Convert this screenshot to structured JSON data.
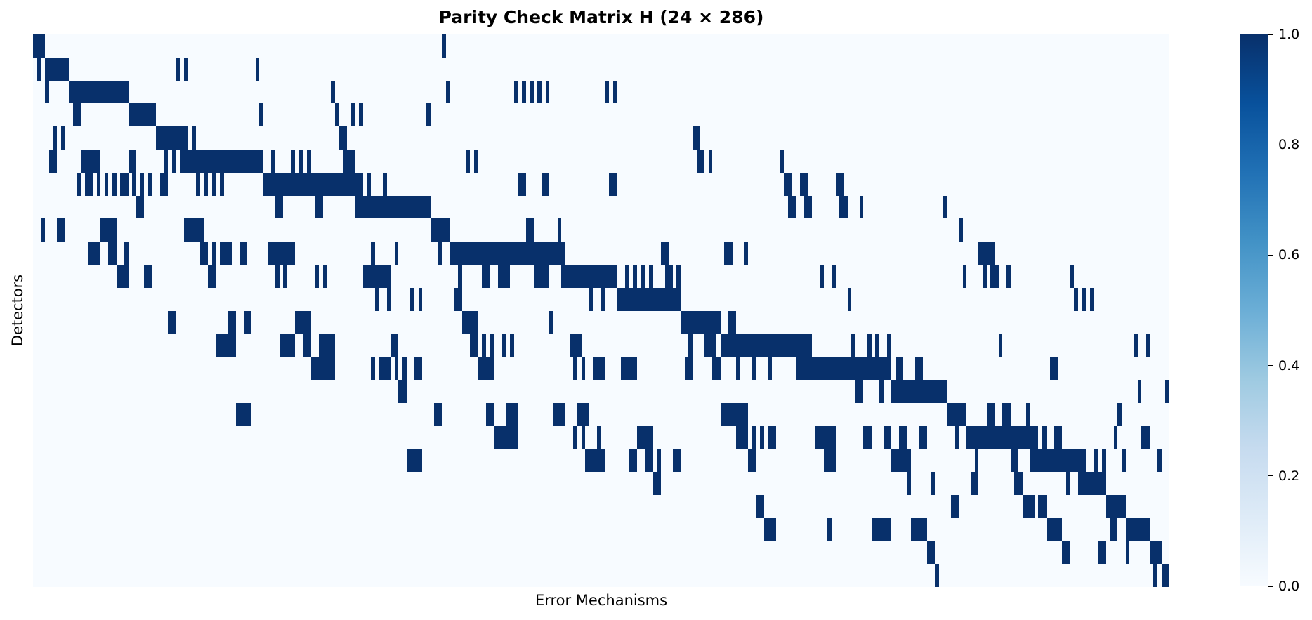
{
  "chart_data": {
    "type": "heatmap",
    "title": "Parity Check Matrix H (24 × 286)",
    "xlabel": "Error Mechanisms",
    "ylabel": "Detectors",
    "n_rows": 24,
    "n_cols": 286,
    "colormap": "Blues",
    "color_low": "#f7fbff",
    "color_high": "#08306b",
    "colorbar": {
      "range": [
        0.0,
        1.0
      ],
      "ticks": [
        "0.0",
        "0.2",
        "0.4",
        "0.6",
        "0.8",
        "1.0"
      ],
      "gradient": [
        "#f7fbff",
        "#deebf7",
        "#c6dbef",
        "#9ecae1",
        "#6baed6",
        "#4292c6",
        "#2171b5",
        "#08519c",
        "#08306b"
      ]
    },
    "grid": false,
    "tick_labels_shown": false,
    "value_encoding": "Each row lists inclusive [start_col, end_col] ranges where H = 1; all other cells are 0.",
    "rows": [
      [
        [
          0,
          2
        ],
        [
          103,
          103
        ]
      ],
      [
        [
          1,
          1
        ],
        [
          3,
          8
        ],
        [
          36,
          36
        ],
        [
          38,
          38
        ],
        [
          56,
          56
        ]
      ],
      [
        [
          3,
          3
        ],
        [
          9,
          23
        ],
        [
          75,
          75
        ],
        [
          104,
          104
        ],
        [
          121,
          121
        ],
        [
          123,
          123
        ],
        [
          125,
          125
        ],
        [
          127,
          127
        ],
        [
          129,
          129
        ],
        [
          144,
          144
        ],
        [
          146,
          146
        ]
      ],
      [
        [
          10,
          11
        ],
        [
          24,
          30
        ],
        [
          57,
          57
        ],
        [
          76,
          76
        ],
        [
          80,
          80
        ],
        [
          82,
          82
        ],
        [
          99,
          99
        ]
      ],
      [
        [
          5,
          5
        ],
        [
          7,
          7
        ],
        [
          31,
          38
        ],
        [
          40,
          40
        ],
        [
          77,
          78
        ],
        [
          166,
          167
        ]
      ],
      [
        [
          4,
          5
        ],
        [
          12,
          16
        ],
        [
          24,
          25
        ],
        [
          33,
          33
        ],
        [
          35,
          35
        ],
        [
          37,
          57
        ],
        [
          60,
          60
        ],
        [
          65,
          65
        ],
        [
          67,
          67
        ],
        [
          69,
          69
        ],
        [
          78,
          80
        ],
        [
          109,
          109
        ],
        [
          111,
          111
        ],
        [
          167,
          168
        ],
        [
          170,
          170
        ],
        [
          188,
          188
        ]
      ],
      [
        [
          11,
          11
        ],
        [
          13,
          14
        ],
        [
          16,
          16
        ],
        [
          18,
          18
        ],
        [
          20,
          20
        ],
        [
          22,
          23
        ],
        [
          25,
          25
        ],
        [
          27,
          27
        ],
        [
          29,
          29
        ],
        [
          32,
          33
        ],
        [
          41,
          41
        ],
        [
          43,
          43
        ],
        [
          45,
          45
        ],
        [
          47,
          47
        ],
        [
          58,
          82
        ],
        [
          84,
          84
        ],
        [
          88,
          88
        ],
        [
          122,
          123
        ],
        [
          128,
          129
        ],
        [
          145,
          146
        ],
        [
          189,
          190
        ],
        [
          193,
          194
        ],
        [
          202,
          203
        ]
      ],
      [
        [
          26,
          27
        ],
        [
          61,
          62
        ],
        [
          71,
          72
        ],
        [
          81,
          99
        ],
        [
          190,
          191
        ],
        [
          194,
          195
        ],
        [
          203,
          204
        ],
        [
          208,
          208
        ],
        [
          229,
          229
        ]
      ],
      [
        [
          2,
          2
        ],
        [
          6,
          7
        ],
        [
          17,
          20
        ],
        [
          38,
          42
        ],
        [
          100,
          104
        ],
        [
          124,
          125
        ],
        [
          132,
          132
        ],
        [
          233,
          233
        ]
      ],
      [
        [
          14,
          16
        ],
        [
          19,
          20
        ],
        [
          23,
          23
        ],
        [
          42,
          43
        ],
        [
          45,
          45
        ],
        [
          47,
          49
        ],
        [
          52,
          53
        ],
        [
          59,
          65
        ],
        [
          85,
          85
        ],
        [
          91,
          91
        ],
        [
          102,
          102
        ],
        [
          105,
          133
        ],
        [
          158,
          159
        ],
        [
          174,
          175
        ],
        [
          179,
          179
        ],
        [
          238,
          241
        ]
      ],
      [
        [
          21,
          23
        ],
        [
          28,
          29
        ],
        [
          44,
          45
        ],
        [
          61,
          61
        ],
        [
          63,
          63
        ],
        [
          71,
          71
        ],
        [
          73,
          73
        ],
        [
          83,
          89
        ],
        [
          107,
          107
        ],
        [
          113,
          114
        ],
        [
          117,
          119
        ],
        [
          126,
          129
        ],
        [
          133,
          146
        ],
        [
          149,
          149
        ],
        [
          151,
          151
        ],
        [
          153,
          153
        ],
        [
          155,
          155
        ],
        [
          159,
          160
        ],
        [
          162,
          162
        ],
        [
          198,
          198
        ],
        [
          201,
          201
        ],
        [
          234,
          234
        ],
        [
          239,
          239
        ],
        [
          241,
          242
        ],
        [
          245,
          245
        ],
        [
          261,
          261
        ]
      ],
      [
        [
          86,
          86
        ],
        [
          89,
          89
        ],
        [
          95,
          95
        ],
        [
          97,
          97
        ],
        [
          106,
          107
        ],
        [
          140,
          140
        ],
        [
          143,
          143
        ],
        [
          147,
          162
        ],
        [
          205,
          205
        ],
        [
          262,
          262
        ],
        [
          264,
          264
        ],
        [
          266,
          266
        ]
      ],
      [
        [
          34,
          35
        ],
        [
          49,
          50
        ],
        [
          53,
          54
        ],
        [
          66,
          69
        ],
        [
          108,
          111
        ],
        [
          130,
          130
        ],
        [
          163,
          172
        ],
        [
          175,
          176
        ]
      ],
      [
        [
          46,
          50
        ],
        [
          62,
          65
        ],
        [
          68,
          69
        ],
        [
          72,
          75
        ],
        [
          90,
          91
        ],
        [
          110,
          111
        ],
        [
          113,
          113
        ],
        [
          115,
          115
        ],
        [
          118,
          118
        ],
        [
          120,
          120
        ],
        [
          135,
          137
        ],
        [
          165,
          165
        ],
        [
          169,
          171
        ],
        [
          173,
          195
        ],
        [
          206,
          206
        ],
        [
          210,
          210
        ],
        [
          212,
          212
        ],
        [
          215,
          215
        ],
        [
          243,
          243
        ],
        [
          277,
          277
        ],
        [
          280,
          280
        ]
      ],
      [
        [
          70,
          75
        ],
        [
          85,
          85
        ],
        [
          87,
          89
        ],
        [
          91,
          91
        ],
        [
          93,
          93
        ],
        [
          96,
          97
        ],
        [
          112,
          115
        ],
        [
          136,
          136
        ],
        [
          138,
          138
        ],
        [
          141,
          143
        ],
        [
          148,
          151
        ],
        [
          164,
          165
        ],
        [
          171,
          172
        ],
        [
          177,
          177
        ],
        [
          181,
          181
        ],
        [
          185,
          185
        ],
        [
          192,
          215
        ],
        [
          217,
          218
        ],
        [
          222,
          223
        ],
        [
          256,
          257
        ]
      ],
      [
        [
          92,
          93
        ],
        [
          207,
          208
        ],
        [
          213,
          213
        ],
        [
          216,
          229
        ],
        [
          278,
          278
        ],
        [
          285,
          285
        ]
      ],
      [
        [
          51,
          54
        ],
        [
          101,
          102
        ],
        [
          114,
          115
        ],
        [
          119,
          121
        ],
        [
          131,
          133
        ],
        [
          137,
          139
        ],
        [
          173,
          179
        ],
        [
          230,
          234
        ],
        [
          240,
          241
        ],
        [
          244,
          245
        ],
        [
          250,
          250
        ],
        [
          273,
          273
        ]
      ],
      [
        [
          116,
          121
        ],
        [
          136,
          136
        ],
        [
          138,
          138
        ],
        [
          142,
          142
        ],
        [
          152,
          155
        ],
        [
          177,
          179
        ],
        [
          181,
          181
        ],
        [
          183,
          183
        ],
        [
          185,
          186
        ],
        [
          197,
          201
        ],
        [
          209,
          210
        ],
        [
          214,
          215
        ],
        [
          218,
          219
        ],
        [
          223,
          224
        ],
        [
          232,
          232
        ],
        [
          235,
          252
        ],
        [
          254,
          254
        ],
        [
          257,
          258
        ],
        [
          272,
          272
        ],
        [
          279,
          280
        ]
      ],
      [
        [
          94,
          97
        ],
        [
          139,
          143
        ],
        [
          150,
          151
        ],
        [
          154,
          155
        ],
        [
          157,
          157
        ],
        [
          161,
          162
        ],
        [
          180,
          181
        ],
        [
          199,
          201
        ],
        [
          216,
          220
        ],
        [
          237,
          237
        ],
        [
          246,
          247
        ],
        [
          251,
          264
        ],
        [
          267,
          267
        ],
        [
          269,
          269
        ],
        [
          274,
          274
        ],
        [
          283,
          283
        ]
      ],
      [
        [
          156,
          157
        ],
        [
          220,
          220
        ],
        [
          226,
          226
        ],
        [
          236,
          237
        ],
        [
          247,
          248
        ],
        [
          260,
          260
        ],
        [
          263,
          269
        ]
      ],
      [
        [
          182,
          183
        ],
        [
          231,
          232
        ],
        [
          249,
          251
        ],
        [
          253,
          254
        ],
        [
          270,
          274
        ]
      ],
      [
        [
          184,
          186
        ],
        [
          200,
          200
        ],
        [
          211,
          215
        ],
        [
          221,
          224
        ],
        [
          255,
          258
        ],
        [
          271,
          272
        ],
        [
          275,
          280
        ]
      ],
      [
        [
          225,
          226
        ],
        [
          259,
          260
        ],
        [
          268,
          269
        ],
        [
          275,
          275
        ],
        [
          281,
          283
        ]
      ],
      [
        [
          227,
          227
        ],
        [
          282,
          282
        ],
        [
          284,
          285
        ]
      ]
    ]
  }
}
